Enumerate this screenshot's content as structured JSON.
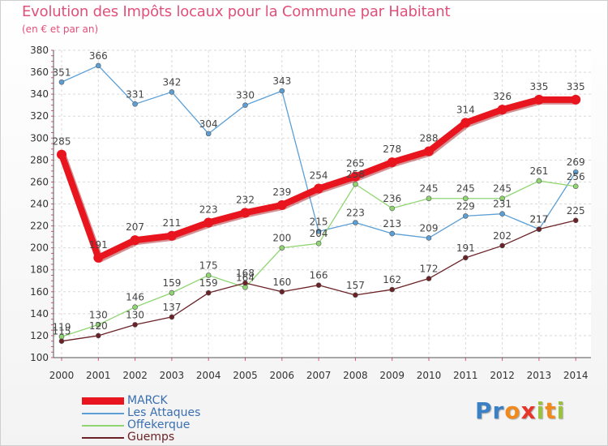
{
  "title": "Evolution des Impôts locaux pour la Commune par Habitant",
  "subtitle": "(en € et par an)",
  "logo": {
    "letters": [
      "P",
      "r",
      "o",
      "x",
      "i",
      "t",
      "i"
    ],
    "colors": [
      "#3b7fc4",
      "#3b7fc4",
      "#f08a1c",
      "#e8352a",
      "#9ac23c",
      "#f08a1c",
      "#9ac23c"
    ]
  },
  "chart_data": {
    "type": "line",
    "title": "Evolution des Impôts locaux pour la Commune par Habitant",
    "ylabel": "(en € et par an)",
    "x": [
      "2000",
      "2001",
      "2002",
      "2003",
      "2004",
      "2005",
      "2006",
      "2007",
      "2008",
      "2009",
      "2010",
      "2011",
      "2012",
      "2013",
      "2014"
    ],
    "ylim": [
      100,
      380
    ],
    "yticks": [
      "100",
      "120",
      "140",
      "160",
      "180",
      "200",
      "220",
      "240",
      "260",
      "280",
      "300",
      "320",
      "340",
      "360",
      "380"
    ],
    "grid": true,
    "legend_position": "bottom-left",
    "series": [
      {
        "name": "MARCK",
        "color": "#e8141e",
        "values": [
          285,
          191,
          207,
          211,
          223,
          232,
          239,
          254,
          265,
          278,
          288,
          314,
          326,
          335,
          335
        ]
      },
      {
        "name": "Les Attaques",
        "color": "#5b9fd6",
        "values": [
          351,
          366,
          331,
          342,
          304,
          330,
          343,
          215,
          223,
          213,
          209,
          229,
          231,
          217,
          269
        ]
      },
      {
        "name": "Offekerque",
        "color": "#8fd672",
        "values": [
          119,
          130,
          146,
          159,
          175,
          164,
          200,
          204,
          258,
          236,
          245,
          245,
          245,
          261,
          256
        ]
      },
      {
        "name": "Guemps",
        "color": "#6b2226",
        "values": [
          115,
          120,
          130,
          137,
          159,
          168,
          160,
          166,
          157,
          162,
          172,
          191,
          202,
          217,
          225
        ]
      }
    ]
  }
}
